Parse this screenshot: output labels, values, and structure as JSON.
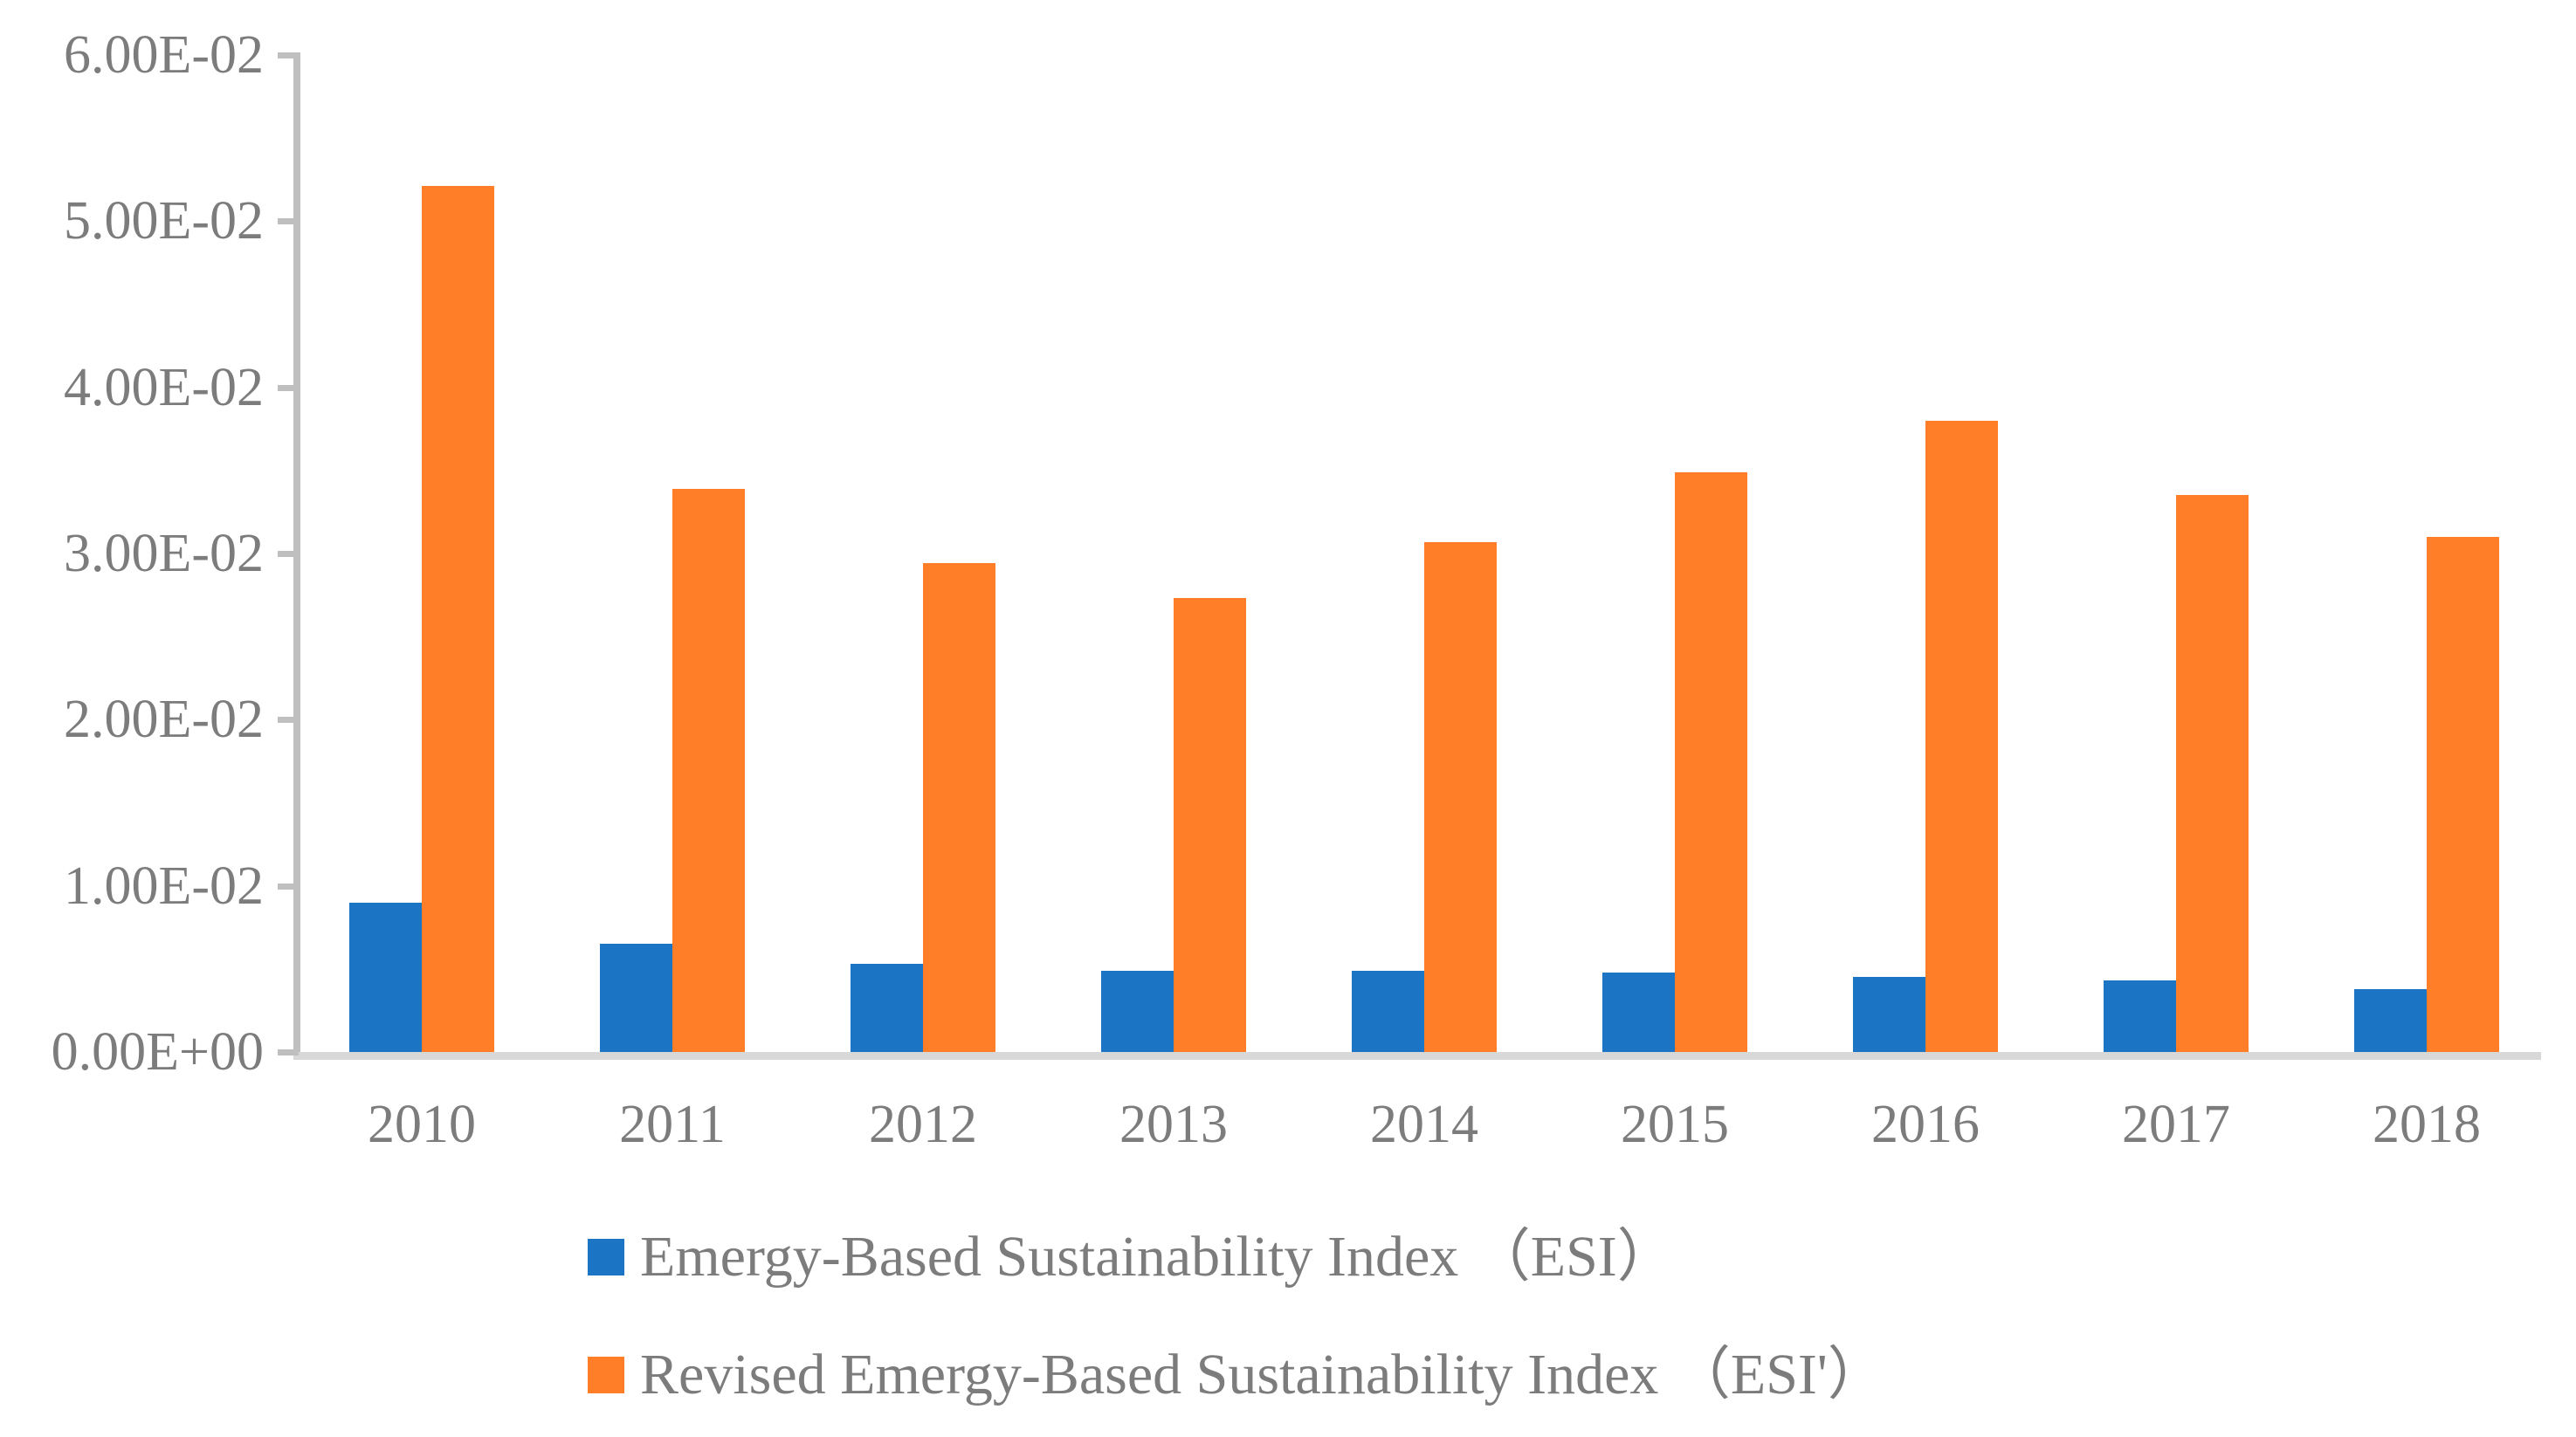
{
  "chart_data": {
    "type": "bar",
    "title": "",
    "xlabel": "",
    "ylabel": "",
    "categories": [
      "2010",
      "2011",
      "2012",
      "2013",
      "2014",
      "2015",
      "2016",
      "2017",
      "2018"
    ],
    "series": [
      {
        "name": "Emergy-Based Sustainability Index （ESI）",
        "color": "#1B74C4",
        "values": [
          0.009,
          0.0065,
          0.0053,
          0.0049,
          0.0049,
          0.0048,
          0.0045,
          0.0043,
          0.0038
        ]
      },
      {
        "name": "Revised Emergy-Based Sustainability Index （ESI'）",
        "color": "#FF7E27",
        "values": [
          0.0521,
          0.0339,
          0.0294,
          0.0273,
          0.0307,
          0.0349,
          0.038,
          0.0335,
          0.031
        ]
      }
    ],
    "ylim": [
      0,
      0.06
    ],
    "y_tick_labels": [
      "0.00E+00",
      "1.00E-02",
      "2.00E-02",
      "3.00E-02",
      "4.00E-02",
      "5.00E-02",
      "6.00E-02"
    ],
    "grid": false,
    "legend_position": "bottom-left",
    "axis_color": "#BFBFBF",
    "baseline_color": "#D8D8D8",
    "text_color": "#7C7C7C"
  }
}
